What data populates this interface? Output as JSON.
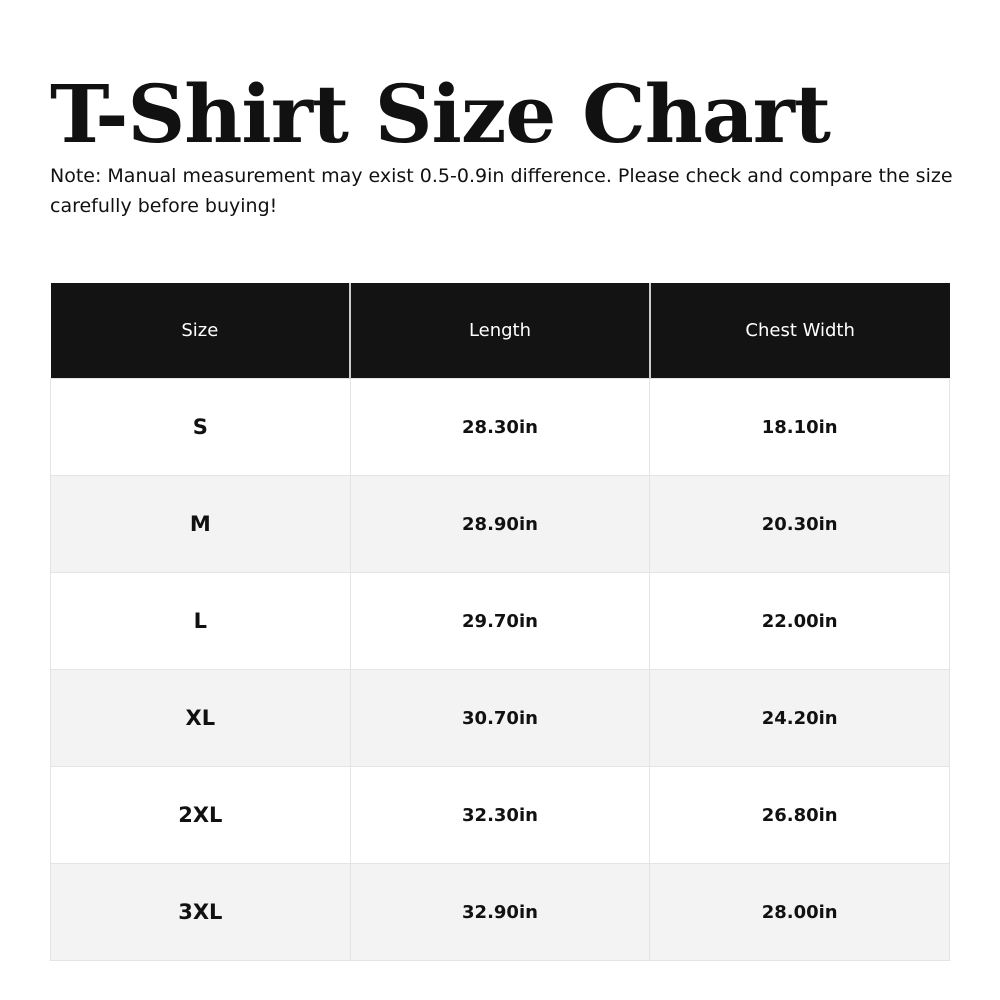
{
  "title": "T-Shirt Size Chart",
  "note": "Note: Manual measurement may exist 0.5-0.9in difference. Please check and compare the size carefully before buying!",
  "table": {
    "headers": [
      "Size",
      "Length",
      "Chest Width"
    ],
    "rows": [
      [
        "S",
        "28.30in",
        "18.10in"
      ],
      [
        "M",
        "28.90in",
        "20.30in"
      ],
      [
        "L",
        "29.70in",
        "22.00in"
      ],
      [
        "XL",
        "30.70in",
        "24.20in"
      ],
      [
        "2XL",
        "32.30in",
        "26.80in"
      ],
      [
        "3XL",
        "32.90in",
        "28.00in"
      ]
    ]
  },
  "colors": {
    "header_bg": "#131313",
    "alt_row_bg": "#f3f3f3"
  }
}
